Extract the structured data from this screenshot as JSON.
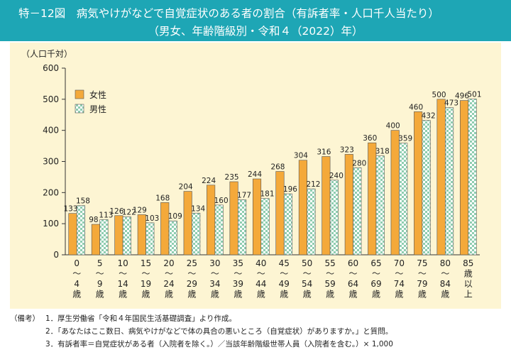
{
  "header": {
    "title_line1": "特－12図　病気やけがなどで自覚症状のある者の割合（有訴者率・人口千人当たり）",
    "title_line2": "（男女、年齢階級別・令和４（2022）年）"
  },
  "chart_data": {
    "type": "bar",
    "ylabel": "（人口千対）",
    "ylim": [
      0,
      600
    ],
    "yticks": [
      0,
      100,
      200,
      300,
      400,
      500,
      600
    ],
    "grid": false,
    "legend_position": "top-left",
    "categories": [
      [
        "0",
        "～",
        "4",
        "歳"
      ],
      [
        "5",
        "～",
        "9",
        "歳"
      ],
      [
        "10",
        "～",
        "14",
        "歳"
      ],
      [
        "15",
        "～",
        "19",
        "歳"
      ],
      [
        "20",
        "～",
        "24",
        "歳"
      ],
      [
        "25",
        "～",
        "29",
        "歳"
      ],
      [
        "30",
        "～",
        "34",
        "歳"
      ],
      [
        "35",
        "～",
        "39",
        "歳"
      ],
      [
        "40",
        "～",
        "44",
        "歳"
      ],
      [
        "45",
        "～",
        "49",
        "歳"
      ],
      [
        "50",
        "～",
        "54",
        "歳"
      ],
      [
        "55",
        "～",
        "59",
        "歳"
      ],
      [
        "60",
        "～",
        "64",
        "歳"
      ],
      [
        "65",
        "～",
        "69",
        "歳"
      ],
      [
        "70",
        "～",
        "74",
        "歳"
      ],
      [
        "75",
        "～",
        "79",
        "歳"
      ],
      [
        "80",
        "～",
        "84",
        "歳"
      ],
      [
        "85",
        "歳",
        "以",
        "上"
      ]
    ],
    "series": [
      {
        "name": "女性",
        "color": "#f4a93a",
        "values": [
          133,
          98,
          126,
          129,
          168,
          204,
          224,
          235,
          244,
          268,
          304,
          316,
          323,
          360,
          400,
          460,
          500,
          496
        ]
      },
      {
        "name": "男性",
        "color": "#9fd3ba",
        "values": [
          158,
          113,
          122,
          103,
          109,
          134,
          160,
          177,
          181,
          196,
          212,
          240,
          280,
          318,
          359,
          432,
          473,
          501
        ]
      }
    ]
  },
  "notes": {
    "label": "（備考）",
    "items": [
      "1．厚生労働省「令和４年国民生活基礎調査」より作成。",
      "2．「あなたはここ数日、病気やけがなどで体の具合の悪いところ（自覚症状）がありますか。」と質問。",
      "3．有訴者率＝自覚症状がある者（入院者を除く。）／当該年齢階級世帯人員（入院者を含む。）× 1,000"
    ]
  }
}
